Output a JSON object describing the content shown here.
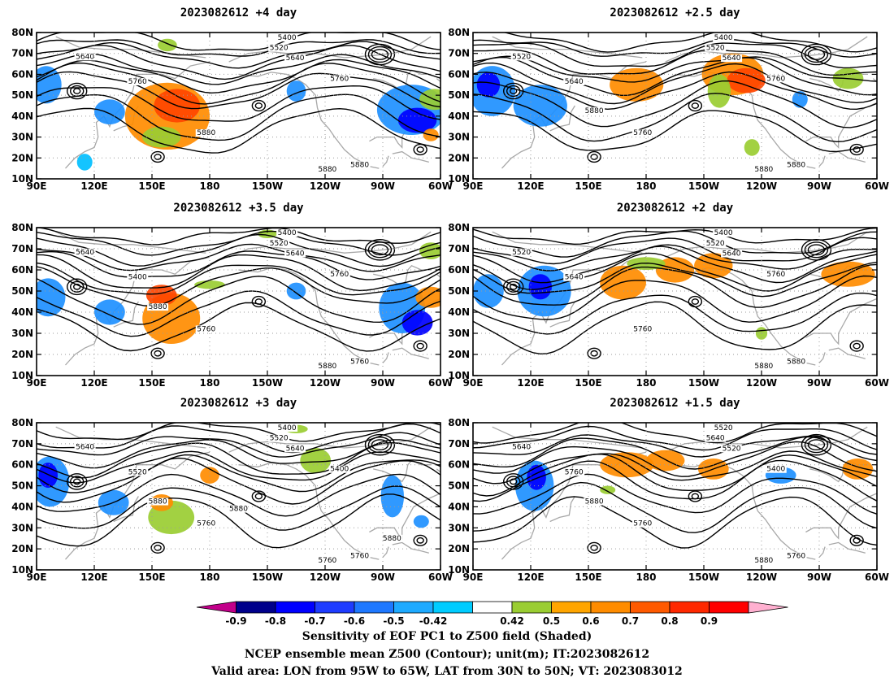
{
  "panels": [
    {
      "id": "p1",
      "title": "2023082612  +4 day",
      "labels": [
        "5400",
        "5520",
        "5640",
        "5640",
        "5760",
        "5760",
        "5880",
        "5880",
        "5880"
      ],
      "blobs": [
        {
          "c": "#ff8c00",
          "lon": 158,
          "lat": 40,
          "rx": 22,
          "ry": 16
        },
        {
          "c": "#ff4500",
          "lon": 163,
          "lat": 45,
          "rx": 12,
          "ry": 8
        },
        {
          "c": "#9acd32",
          "lon": 155,
          "lat": 30,
          "rx": 10,
          "ry": 5
        },
        {
          "c": "#1e90ff",
          "lon": 95,
          "lat": 55,
          "rx": 8,
          "ry": 9
        },
        {
          "c": "#1e90ff",
          "lon": 128,
          "lat": 42,
          "rx": 8,
          "ry": 6
        },
        {
          "c": "#00bfff",
          "lon": 115,
          "lat": 18,
          "rx": 4,
          "ry": 4
        },
        {
          "c": "#1e90ff",
          "lon": -75,
          "lat": 43,
          "rx": 18,
          "ry": 12
        },
        {
          "c": "#0000ff",
          "lon": -72,
          "lat": 38,
          "rx": 10,
          "ry": 6
        },
        {
          "c": "#9acd32",
          "lon": -63,
          "lat": 48,
          "rx": 8,
          "ry": 5
        },
        {
          "c": "#ff8c00",
          "lon": -65,
          "lat": 31,
          "rx": 4,
          "ry": 3
        },
        {
          "c": "#1e90ff",
          "lon": -135,
          "lat": 52,
          "rx": 5,
          "ry": 5
        },
        {
          "c": "#9acd32",
          "lon": 158,
          "lat": 74,
          "rx": 5,
          "ry": 3
        }
      ]
    },
    {
      "id": "p2",
      "title": "2023082612  +2.5 day",
      "labels": [
        "5400",
        "5520",
        "5640",
        "5520",
        "5640",
        "5760",
        "5760",
        "5880",
        "5880",
        "5880"
      ],
      "blobs": [
        {
          "c": "#1e90ff",
          "lon": 100,
          "lat": 52,
          "rx": 12,
          "ry": 12
        },
        {
          "c": "#0000ff",
          "lon": 98,
          "lat": 55,
          "rx": 6,
          "ry": 6
        },
        {
          "c": "#1e90ff",
          "lon": 125,
          "lat": 45,
          "rx": 14,
          "ry": 10
        },
        {
          "c": "#ff8c00",
          "lon": 175,
          "lat": 55,
          "rx": 14,
          "ry": 8
        },
        {
          "c": "#ff8c00",
          "lon": -135,
          "lat": 60,
          "rx": 16,
          "ry": 10
        },
        {
          "c": "#ff4500",
          "lon": -128,
          "lat": 57,
          "rx": 10,
          "ry": 6
        },
        {
          "c": "#9acd32",
          "lon": -142,
          "lat": 52,
          "rx": 6,
          "ry": 8
        },
        {
          "c": "#9acd32",
          "lon": -125,
          "lat": 25,
          "rx": 4,
          "ry": 4
        },
        {
          "c": "#9acd32",
          "lon": -75,
          "lat": 58,
          "rx": 8,
          "ry": 5
        },
        {
          "c": "#1e90ff",
          "lon": -100,
          "lat": 48,
          "rx": 4,
          "ry": 4
        }
      ]
    },
    {
      "id": "p3",
      "title": "2023082612  +3.5 day",
      "labels": [
        "5400",
        "5520",
        "5640",
        "5640",
        "5400",
        "5760",
        "5760",
        "5760",
        "5880",
        "5880"
      ],
      "blobs": [
        {
          "c": "#1e90ff",
          "lon": 96,
          "lat": 47,
          "rx": 9,
          "ry": 9
        },
        {
          "c": "#1e90ff",
          "lon": 128,
          "lat": 40,
          "rx": 8,
          "ry": 6
        },
        {
          "c": "#ff8c00",
          "lon": 160,
          "lat": 37,
          "rx": 15,
          "ry": 12
        },
        {
          "c": "#ff4500",
          "lon": 155,
          "lat": 48,
          "rx": 8,
          "ry": 5
        },
        {
          "c": "#9acd32",
          "lon": 180,
          "lat": 53,
          "rx": 8,
          "ry": 2
        },
        {
          "c": "#1e90ff",
          "lon": -80,
          "lat": 42,
          "rx": 12,
          "ry": 12
        },
        {
          "c": "#0000ff",
          "lon": -72,
          "lat": 35,
          "rx": 8,
          "ry": 6
        },
        {
          "c": "#ff8c00",
          "lon": -65,
          "lat": 47,
          "rx": 8,
          "ry": 5
        },
        {
          "c": "#9acd32",
          "lon": -65,
          "lat": 69,
          "rx": 6,
          "ry": 4
        },
        {
          "c": "#1e90ff",
          "lon": -135,
          "lat": 50,
          "rx": 5,
          "ry": 4
        },
        {
          "c": "#9acd32",
          "lon": -150,
          "lat": 77,
          "rx": 5,
          "ry": 2
        }
      ]
    },
    {
      "id": "p4",
      "title": "2023082612  +2 day",
      "labels": [
        "5400",
        "5520",
        "5640",
        "5520",
        "5640",
        "5760",
        "5760",
        "5880",
        "5880"
      ],
      "blobs": [
        {
          "c": "#1e90ff",
          "lon": 98,
          "lat": 50,
          "rx": 8,
          "ry": 8
        },
        {
          "c": "#1e90ff",
          "lon": 127,
          "lat": 50,
          "rx": 14,
          "ry": 12
        },
        {
          "c": "#0000ff",
          "lon": 125,
          "lat": 52,
          "rx": 6,
          "ry": 6
        },
        {
          "c": "#ff8c00",
          "lon": 168,
          "lat": 54,
          "rx": 12,
          "ry": 8
        },
        {
          "c": "#ff8c00",
          "lon": -165,
          "lat": 60,
          "rx": 10,
          "ry": 6
        },
        {
          "c": "#ff8c00",
          "lon": -145,
          "lat": 62,
          "rx": 10,
          "ry": 6
        },
        {
          "c": "#ff8c00",
          "lon": -75,
          "lat": 58,
          "rx": 14,
          "ry": 6
        },
        {
          "c": "#9acd32",
          "lon": 180,
          "lat": 63,
          "rx": 10,
          "ry": 3
        },
        {
          "c": "#9acd32",
          "lon": -120,
          "lat": 30,
          "rx": 3,
          "ry": 3
        }
      ]
    },
    {
      "id": "p5",
      "title": "2023082612  +3 day",
      "labels": [
        "5400",
        "5520",
        "5640",
        "5640",
        "5520",
        "5400",
        "5760",
        "5760",
        "5760",
        "5880",
        "5880",
        "5880"
      ],
      "blobs": [
        {
          "c": "#1e90ff",
          "lon": 97,
          "lat": 52,
          "rx": 10,
          "ry": 12
        },
        {
          "c": "#0000ff",
          "lon": 96,
          "lat": 55,
          "rx": 5,
          "ry": 6
        },
        {
          "c": "#1e90ff",
          "lon": 130,
          "lat": 42,
          "rx": 8,
          "ry": 6
        },
        {
          "c": "#9acd32",
          "lon": 160,
          "lat": 35,
          "rx": 12,
          "ry": 8
        },
        {
          "c": "#ff8c00",
          "lon": 155,
          "lat": 42,
          "rx": 6,
          "ry": 4
        },
        {
          "c": "#ff8c00",
          "lon": 180,
          "lat": 55,
          "rx": 5,
          "ry": 4
        },
        {
          "c": "#9acd32",
          "lon": -125,
          "lat": 62,
          "rx": 8,
          "ry": 6
        },
        {
          "c": "#1e90ff",
          "lon": -85,
          "lat": 45,
          "rx": 6,
          "ry": 10
        },
        {
          "c": "#1e90ff",
          "lon": -70,
          "lat": 33,
          "rx": 4,
          "ry": 3
        },
        {
          "c": "#9acd32",
          "lon": -135,
          "lat": 77,
          "rx": 6,
          "ry": 2
        }
      ]
    },
    {
      "id": "p6",
      "title": "2023082612  +1.5 day",
      "labels": [
        "5520",
        "5640",
        "5520",
        "5640",
        "5760",
        "5400",
        "5760",
        "5760",
        "5880",
        "5880"
      ],
      "blobs": [
        {
          "c": "#1e90ff",
          "lon": 122,
          "lat": 50,
          "rx": 10,
          "ry": 12
        },
        {
          "c": "#0000ff",
          "lon": 123,
          "lat": 54,
          "rx": 5,
          "ry": 6
        },
        {
          "c": "#ff8c00",
          "lon": 170,
          "lat": 60,
          "rx": 14,
          "ry": 6
        },
        {
          "c": "#ff8c00",
          "lon": -170,
          "lat": 62,
          "rx": 10,
          "ry": 5
        },
        {
          "c": "#ff8c00",
          "lon": -145,
          "lat": 58,
          "rx": 8,
          "ry": 5
        },
        {
          "c": "#ff8c00",
          "lon": -70,
          "lat": 58,
          "rx": 8,
          "ry": 5
        },
        {
          "c": "#1e90ff",
          "lon": -110,
          "lat": 55,
          "rx": 8,
          "ry": 4
        },
        {
          "c": "#9acd32",
          "lon": 160,
          "lat": 48,
          "rx": 4,
          "ry": 2
        }
      ]
    }
  ],
  "axes": {
    "lat_ticks": [
      "80N",
      "70N",
      "60N",
      "50N",
      "40N",
      "30N",
      "20N",
      "10N"
    ],
    "lon_ticks": [
      "90E",
      "120E",
      "150E",
      "180",
      "150W",
      "120W",
      "90W",
      "60W"
    ],
    "lat_range": [
      10,
      80
    ],
    "lon_range": [
      90,
      300
    ]
  },
  "colorbar": {
    "colors": [
      "#c2008a",
      "#00008b",
      "#0000ff",
      "#1e3cff",
      "#1e78ff",
      "#1eaaff",
      "#00ccff",
      "#ffffff",
      "#9acd32",
      "#ffa500",
      "#ff8c00",
      "#ff5a00",
      "#ff2800",
      "#ff0000",
      "#ffb0d0"
    ],
    "ticks": [
      "-0.9",
      "-0.8",
      "-0.7",
      "-0.6",
      "-0.5",
      "-0.42",
      "0.42",
      "0.5",
      "0.6",
      "0.7",
      "0.8",
      "0.9"
    ]
  },
  "captions": [
    "Sensitivity of EOF PC1 to Z500 field (Shaded)",
    "NCEP ensemble mean Z500 (Contour); unit(m); IT:2023082612",
    "Valid area: LON from 95W to 65W, LAT from 30N to 50N; VT: 2023083012"
  ]
}
